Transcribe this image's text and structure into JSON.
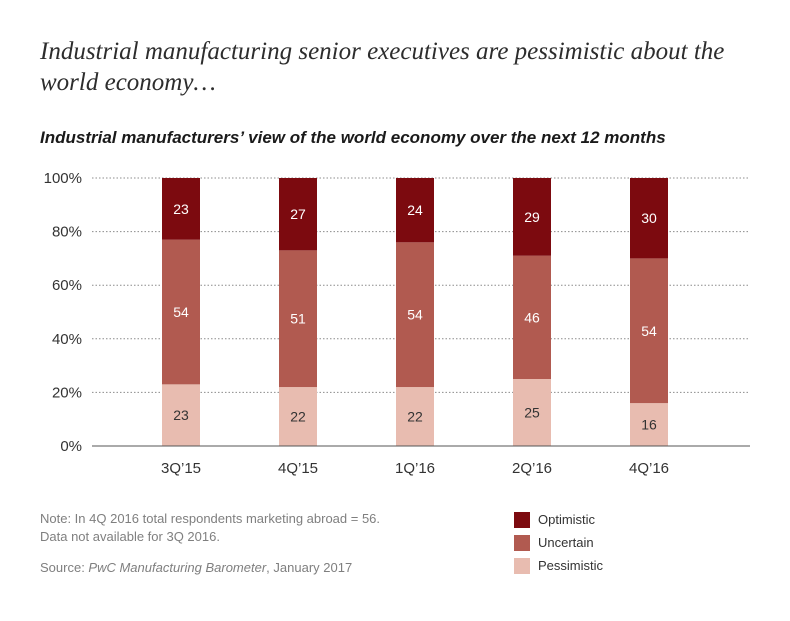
{
  "headline": "Industrial manufacturing senior executives are pessimistic about the world economy…",
  "chart_data": {
    "type": "bar",
    "stacked": true,
    "title": "Industrial manufacturers’ view of the world economy over the next 12 months",
    "categories": [
      "3Q’15",
      "4Q’15",
      "1Q’16",
      "2Q’16",
      "4Q’16"
    ],
    "series": [
      {
        "name": "Pessimistic",
        "color": "#e8bcb0",
        "label_color": "#333333",
        "values": [
          23,
          22,
          22,
          25,
          16
        ]
      },
      {
        "name": "Uncertain",
        "color": "#b15a50",
        "label_color": "#ffffff",
        "values": [
          54,
          51,
          54,
          46,
          54
        ]
      },
      {
        "name": "Optimistic",
        "color": "#7c0a0f",
        "label_color": "#ffffff",
        "values": [
          23,
          27,
          24,
          29,
          30
        ]
      }
    ],
    "y_ticks": [
      "0%",
      "20%",
      "40%",
      "60%",
      "80%",
      "100%"
    ],
    "ylim": [
      0,
      100
    ],
    "xlabel": "",
    "ylabel": "",
    "grid": true,
    "legend_position": "bottom-right"
  },
  "legend_items": [
    {
      "label": "Optimistic",
      "color": "#7c0a0f"
    },
    {
      "label": "Uncertain",
      "color": "#b15a50"
    },
    {
      "label": "Pessimistic",
      "color": "#e8bcb0"
    }
  ],
  "note_line1": "Note: In 4Q 2016 total respondents marketing abroad = 56.",
  "note_line2": "Data not available for 3Q 2016.",
  "source_prefix": "Source: ",
  "source_title": "PwC Manufacturing Barometer",
  "source_suffix": ", January 2017"
}
